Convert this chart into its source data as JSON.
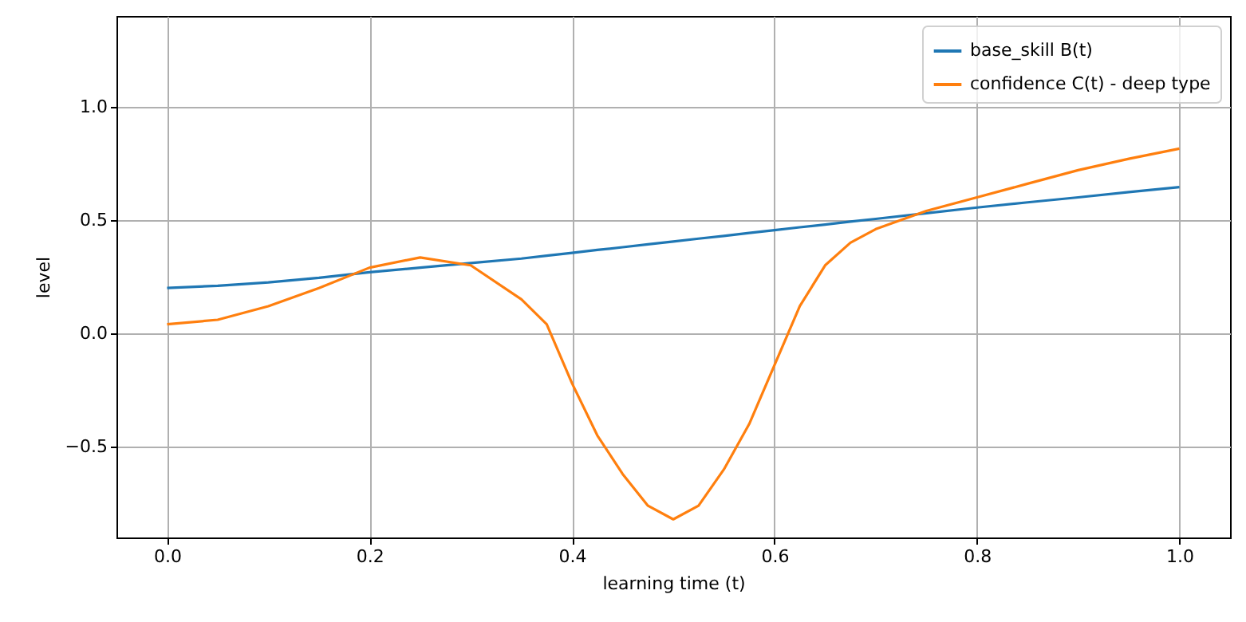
{
  "chart_data": {
    "type": "line",
    "xlabel": "learning time (t)",
    "ylabel": "level",
    "xlim": [
      -0.05,
      1.05
    ],
    "ylim": [
      -0.9,
      1.4
    ],
    "xticks": [
      {
        "value": 0,
        "label": "0.0"
      },
      0.2,
      0.4,
      0.6,
      0.8,
      {
        "value": 1,
        "label": "1.0"
      }
    ],
    "yticks": [
      {
        "value": -0.5,
        "label": "−0.5"
      },
      {
        "value": 0,
        "label": "0.0"
      },
      0.5,
      {
        "value": 1,
        "label": "1.0"
      }
    ],
    "grid": true,
    "legend": "top right",
    "marker": "none",
    "line_style": "solid",
    "x": [
      0,
      0.05,
      0.1,
      0.15,
      0.2,
      0.25,
      0.3,
      0.35,
      0.375,
      0.4,
      0.425,
      0.45,
      0.475,
      0.5,
      0.525,
      0.55,
      0.575,
      0.6,
      0.625,
      0.65,
      0.675,
      0.7,
      0.75,
      0.8,
      0.85,
      0.9,
      0.95,
      1.0
    ],
    "series": [
      {
        "name": "base_skill B(t)",
        "color": "#1f77b4",
        "values": [
          0.2,
          0.21,
          0.225,
          0.245,
          0.27,
          0.29,
          0.31,
          0.33,
          0.343,
          0.355,
          0.368,
          0.38,
          0.393,
          0.405,
          0.418,
          0.43,
          0.443,
          0.455,
          0.468,
          0.48,
          0.493,
          0.505,
          0.53,
          0.555,
          0.578,
          0.6,
          0.623,
          0.645
        ]
      },
      {
        "name": "confidence C(t) - deep type",
        "color": "#ff7f0e",
        "values": [
          0.04,
          0.06,
          0.12,
          0.2,
          0.29,
          0.335,
          0.3,
          0.15,
          0.04,
          -0.22,
          -0.45,
          -0.62,
          -0.76,
          -0.82,
          -0.76,
          -0.6,
          -0.4,
          -0.14,
          0.12,
          0.3,
          0.4,
          0.46,
          0.54,
          0.6,
          0.66,
          0.72,
          0.77,
          0.815
        ]
      }
    ]
  }
}
